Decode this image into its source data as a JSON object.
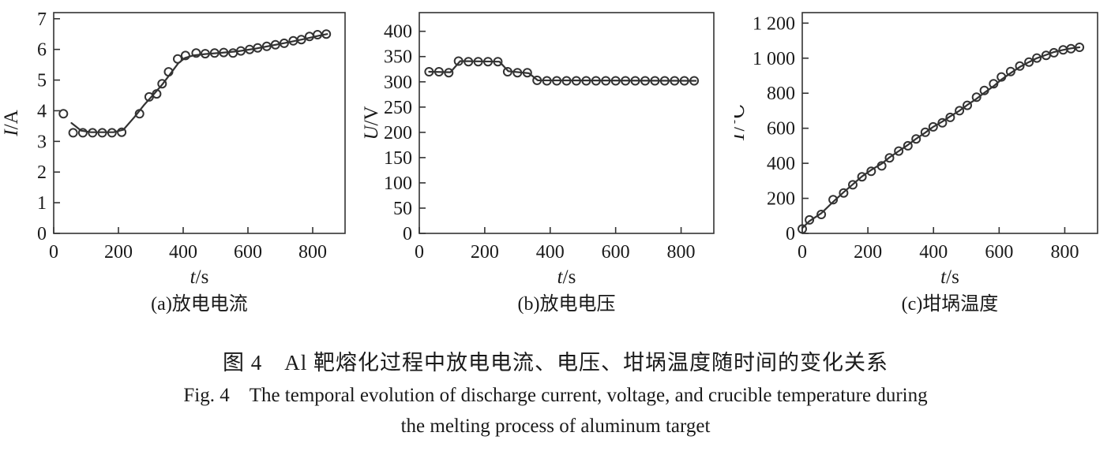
{
  "figure": {
    "caption_zh": "图 4 Al 靶熔化过程中放电电流、电压、坩埚温度随时间的变化关系",
    "caption_en_line1": "Fig. 4 The temporal evolution of discharge current, voltage, and crucible temperature during",
    "caption_en_line2": "the melting process of aluminum target"
  },
  "colors": {
    "ink": "#333333",
    "text": "#1a1a1a",
    "background": "#ffffff"
  },
  "chart_data": [
    {
      "id": "a",
      "type": "scatter",
      "title": "(a)放电电流",
      "title_meaning": "discharge current",
      "xlabel_var": "t",
      "xlabel_unit": "/s",
      "ylabel_var": "I",
      "ylabel_unit": "/A",
      "xlim": [
        0,
        900
      ],
      "ylim": [
        0,
        7.2
      ],
      "grid": false,
      "legend": null,
      "xtick_values": [
        0,
        200,
        400,
        600,
        800
      ],
      "xtick_labels": [
        "0",
        "200",
        "400",
        "600",
        "800"
      ],
      "ytick_values": [
        0,
        1,
        2,
        3,
        4,
        5,
        6,
        7
      ],
      "ytick_labels": [
        "0",
        "1",
        "2",
        "3",
        "4",
        "5",
        "6",
        "7"
      ],
      "scatter": {
        "t": [
          30,
          60,
          90,
          120,
          150,
          180,
          210,
          265,
          295,
          318,
          335,
          355,
          383,
          407,
          440,
          468,
          497,
          525,
          554,
          578,
          605,
          630,
          658,
          685,
          712,
          740,
          765,
          790,
          815,
          842
        ],
        "v": [
          3.9,
          3.28,
          3.28,
          3.28,
          3.28,
          3.28,
          3.3,
          3.9,
          4.45,
          4.55,
          4.88,
          5.27,
          5.69,
          5.8,
          5.88,
          5.86,
          5.88,
          5.9,
          5.88,
          5.95,
          6.0,
          6.05,
          6.1,
          6.15,
          6.2,
          6.28,
          6.32,
          6.42,
          6.48,
          6.5
        ]
      },
      "fit_line": {
        "t": [
          55,
          85,
          115,
          150,
          185,
          215,
          250,
          280,
          310,
          335,
          360,
          385,
          405,
          430,
          470,
          520,
          570,
          620,
          670,
          720,
          770,
          820,
          845
        ],
        "v": [
          3.6,
          3.35,
          3.3,
          3.3,
          3.3,
          3.38,
          3.8,
          4.2,
          4.55,
          4.85,
          5.2,
          5.55,
          5.72,
          5.8,
          5.85,
          5.89,
          5.94,
          6.02,
          6.12,
          6.22,
          6.33,
          6.45,
          6.5
        ]
      }
    },
    {
      "id": "b",
      "type": "scatter",
      "title": "(b)放电电压",
      "title_meaning": "discharge voltage",
      "xlabel_var": "t",
      "xlabel_unit": "/s",
      "ylabel_var": "U",
      "ylabel_unit": "/V",
      "xlim": [
        0,
        900
      ],
      "ylim": [
        0,
        437
      ],
      "grid": false,
      "legend": null,
      "xtick_values": [
        0,
        200,
        400,
        600,
        800
      ],
      "xtick_labels": [
        "0",
        "200",
        "400",
        "600",
        "800"
      ],
      "ytick_values": [
        0,
        50,
        100,
        150,
        200,
        250,
        300,
        350,
        400
      ],
      "ytick_labels": [
        "0",
        "50",
        "100",
        "150",
        "200",
        "250",
        "300",
        "350",
        "400"
      ],
      "scatter": {
        "t": [
          30,
          60,
          90,
          120,
          150,
          180,
          210,
          240,
          270,
          300,
          330,
          360,
          390,
          420,
          450,
          480,
          510,
          540,
          570,
          600,
          630,
          660,
          690,
          720,
          750,
          780,
          810,
          840
        ],
        "v": [
          320,
          320,
          318,
          341,
          340,
          340,
          340,
          340,
          320,
          318,
          318,
          303,
          302,
          302,
          302,
          302,
          302,
          302,
          302,
          302,
          302,
          302,
          302,
          302,
          302,
          302,
          302,
          302
        ]
      },
      "fit_line": {
        "t": [
          30,
          95,
          125,
          245,
          272,
          335,
          362,
          845
        ],
        "v": [
          320,
          319,
          341,
          340,
          321,
          317,
          303,
          302
        ]
      }
    },
    {
      "id": "c",
      "type": "scatter",
      "title": "(c)坩埚温度",
      "title_meaning": "crucible temperature",
      "xlabel_var": "t",
      "xlabel_unit": "/s",
      "ylabel_var": "T",
      "ylabel_unit": "/℃",
      "xlim": [
        0,
        900
      ],
      "ylim": [
        0,
        1260
      ],
      "grid": false,
      "legend": null,
      "xtick_values": [
        0,
        200,
        400,
        600,
        800
      ],
      "xtick_labels": [
        "0",
        "200",
        "400",
        "600",
        "800"
      ],
      "ytick_values": [
        0,
        200,
        400,
        600,
        800,
        1000,
        1200
      ],
      "ytick_labels": [
        "0",
        "200",
        "400",
        "600",
        "800",
        "1 000",
        "1 200"
      ],
      "scatter": {
        "t": [
          0,
          22,
          58,
          94,
          126,
          154,
          182,
          210,
          242,
          266,
          294,
          322,
          347,
          375,
          399,
          427,
          451,
          479,
          503,
          531,
          555,
          583,
          607,
          635,
          663,
          691,
          715,
          743,
          767,
          795,
          819,
          845
        ],
        "v": [
          25,
          77,
          108,
          192,
          231,
          277,
          323,
          354,
          385,
          431,
          470,
          500,
          539,
          577,
          608,
          631,
          662,
          700,
          731,
          777,
          816,
          854,
          893,
          924,
          955,
          978,
          1001,
          1016,
          1031,
          1047,
          1054,
          1062
        ]
      },
      "fit_line": {
        "t": [
          0,
          22,
          58,
          94,
          126,
          154,
          182,
          210,
          242,
          266,
          294,
          322,
          347,
          375,
          399,
          427,
          451,
          479,
          503,
          531,
          555,
          583,
          607,
          635,
          663,
          691,
          715,
          743,
          767,
          795,
          819,
          845
        ],
        "v": [
          30,
          70,
          115,
          180,
          235,
          280,
          325,
          362,
          398,
          434,
          470,
          505,
          540,
          575,
          608,
          638,
          668,
          700,
          733,
          768,
          803,
          840,
          878,
          915,
          950,
          978,
          1000,
          1019,
          1035,
          1047,
          1056,
          1062
        ]
      }
    }
  ]
}
